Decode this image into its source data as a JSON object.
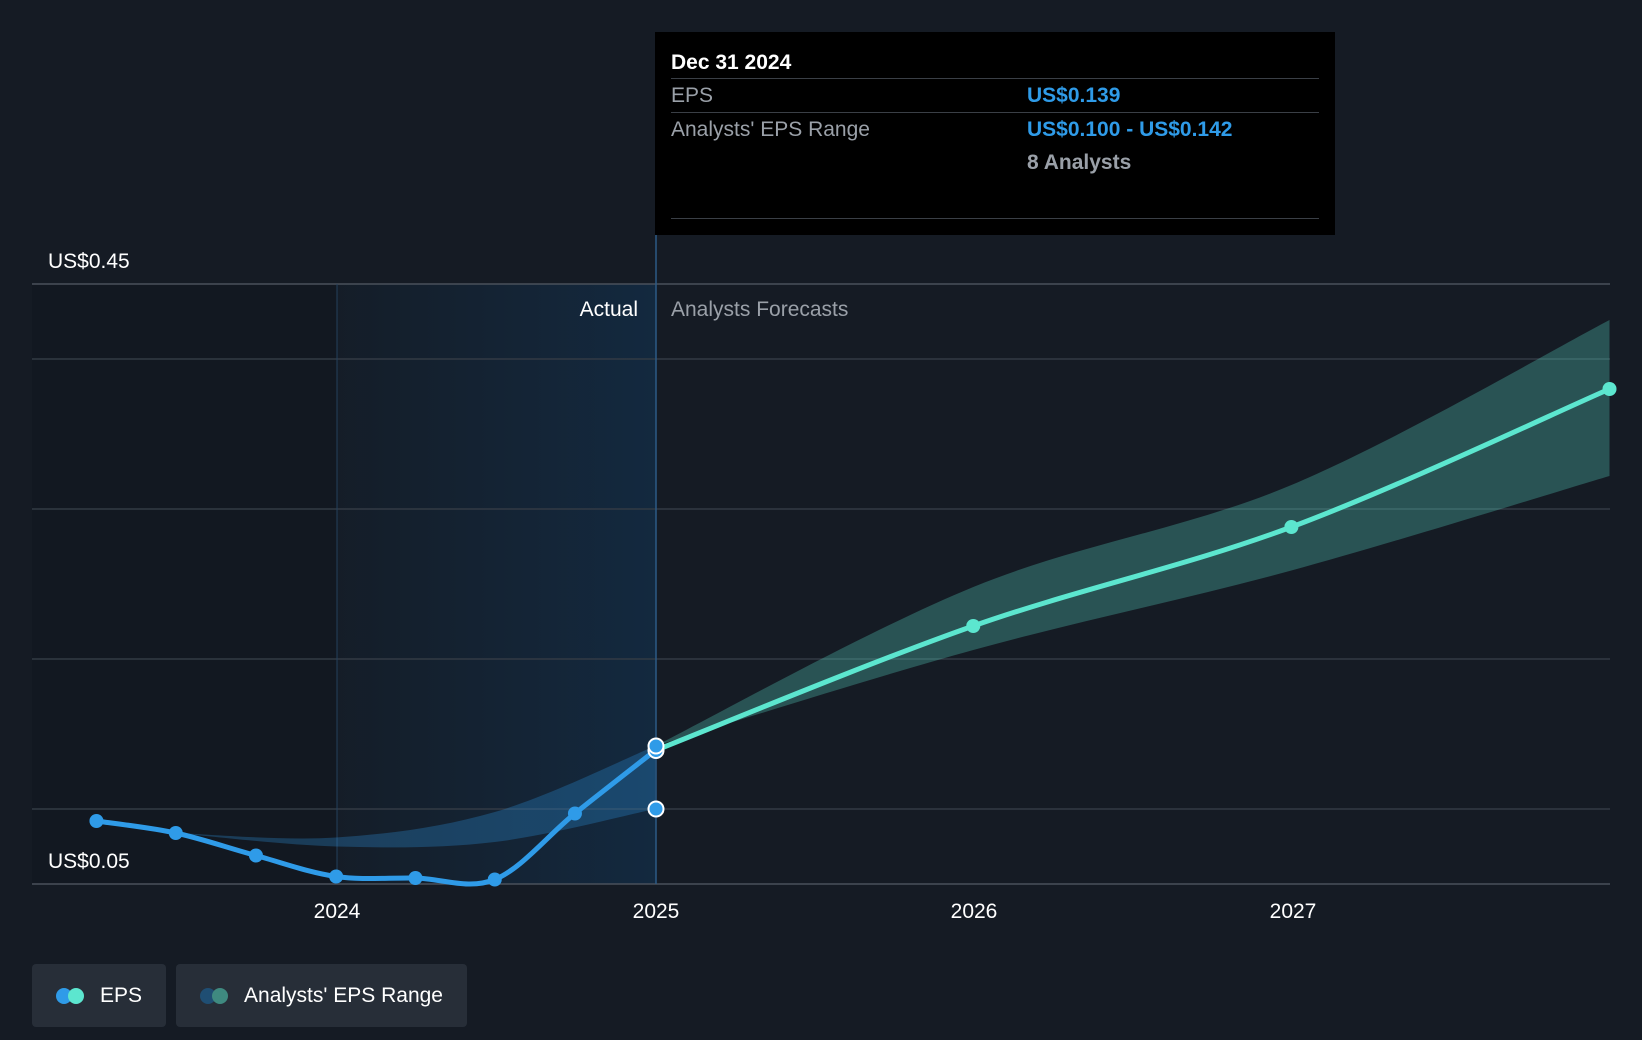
{
  "chart_data": {
    "type": "line",
    "title": "",
    "xlabel": "",
    "ylabel": "",
    "y_axis": {
      "top_label": "US$0.45",
      "bottom_label": "US$0.05",
      "ylim": [
        0.05,
        0.45
      ]
    },
    "x_ticks": [
      "2024",
      "2025",
      "2026",
      "2027"
    ],
    "regions": {
      "actual_label": "Actual",
      "forecast_label": "Analysts Forecasts"
    },
    "series": [
      {
        "name": "EPS",
        "kind": "actual",
        "color": "#2f9be8",
        "points": [
          {
            "x": "2023-03-31",
            "y": 0.092
          },
          {
            "x": "2023-06-30",
            "y": 0.084
          },
          {
            "x": "2023-09-30",
            "y": 0.069
          },
          {
            "x": "2023-12-31",
            "y": 0.055
          },
          {
            "x": "2024-03-31",
            "y": 0.054
          },
          {
            "x": "2024-06-30",
            "y": 0.053
          },
          {
            "x": "2024-09-30",
            "y": 0.097
          },
          {
            "x": "2024-12-31",
            "y": 0.139
          }
        ]
      },
      {
        "name": "EPS",
        "kind": "forecast",
        "color": "#5ce6cf",
        "points": [
          {
            "x": "2024-12-31",
            "y": 0.139
          },
          {
            "x": "2025-12-31",
            "y": 0.222
          },
          {
            "x": "2026-12-31",
            "y": 0.288
          },
          {
            "x": "2027-12-31",
            "y": 0.38
          }
        ]
      }
    ],
    "ranges": [
      {
        "name": "Analysts' EPS Range",
        "kind": "actual",
        "color": "#2f9be8",
        "x": [
          "2023-06-30",
          "2023-12-31",
          "2024-06-30",
          "2024-12-31"
        ],
        "low": [
          0.084,
          0.075,
          0.078,
          0.1
        ],
        "high": [
          0.084,
          0.081,
          0.098,
          0.142
        ]
      },
      {
        "name": "Analysts' EPS Range",
        "kind": "forecast",
        "color": "#5ce6cf",
        "x": [
          "2024-12-31",
          "2025-12-31",
          "2026-12-31",
          "2027-12-31"
        ],
        "low": [
          0.142,
          0.206,
          0.259,
          0.322
        ],
        "high": [
          0.142,
          0.248,
          0.316,
          0.426
        ]
      }
    ],
    "highlight_points": [
      0.139,
      0.142,
      0.1
    ],
    "tooltip": {
      "date": "Dec 31 2024",
      "eps_label": "EPS",
      "eps_value": "US$0.139",
      "range_label": "Analysts' EPS Range",
      "range_value": "US$0.100 - US$0.142",
      "analysts": "8 Analysts"
    },
    "legend": [
      "EPS",
      "Analysts' EPS Range"
    ],
    "colors": {
      "background": "#151b24",
      "actual_shade": "#13293f",
      "eps_actual": "#2f9be8",
      "eps_forecast": "#5ce6cf",
      "range_forecast": "#2e5a58",
      "grid": "#333a44"
    }
  }
}
